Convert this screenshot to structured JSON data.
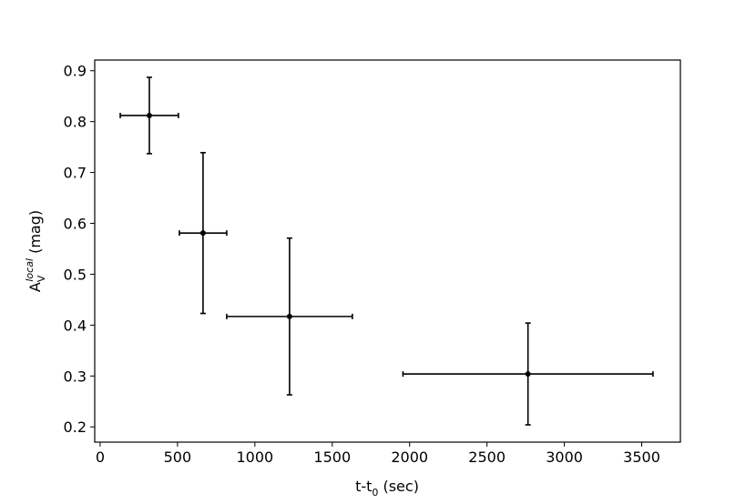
{
  "chart_data": {
    "type": "scatter",
    "xlabel": {
      "base": "t-t",
      "sub": "0",
      "rest": " (sec)"
    },
    "ylabel": {
      "base": "A",
      "sub": "V",
      "sup": "local",
      "rest": " (mag)"
    },
    "series": [
      {
        "color": "#000000",
        "x": [
          318,
          665,
          1224,
          2765
        ],
        "values": [
          0.812,
          0.581,
          0.417,
          0.304
        ],
        "xerr": [
          188,
          153,
          406,
          808
        ],
        "yerr": [
          0.075,
          0.158,
          0.154,
          0.1
        ]
      }
    ],
    "xlim": [
      -35,
      3750
    ],
    "ylim": [
      0.17,
      0.921
    ],
    "xticks": [
      0,
      500,
      1000,
      1500,
      2000,
      2500,
      3000,
      3500
    ],
    "yticks": [
      0.2,
      0.3,
      0.4,
      0.5,
      0.6,
      0.7,
      0.8,
      0.9
    ],
    "grid": false
  }
}
